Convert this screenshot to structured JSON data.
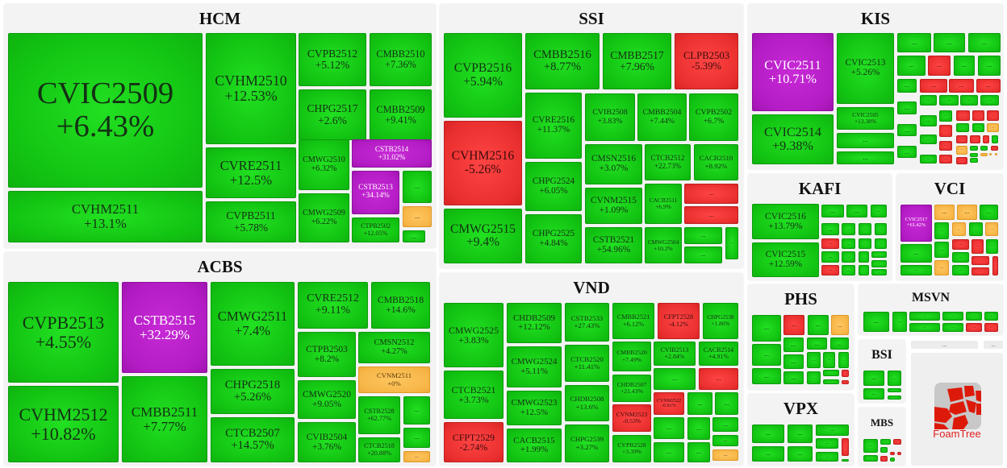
{
  "colors": {
    "up": "#12c412",
    "down": "#ea2f2f",
    "reference": "#f6b445",
    "ceiling": "#b31cc4"
  },
  "groups": [
    {
      "name": "HCM",
      "tiles": [
        {
          "t": "CVIC2509",
          "v": "+6.43%",
          "s": "up"
        },
        {
          "t": "CVHM2511",
          "v": "+13.1%",
          "s": "up"
        },
        {
          "t": "CVHM2510",
          "v": "+12.53%",
          "s": "up"
        },
        {
          "t": "CVRE2511",
          "v": "+12.5%",
          "s": "up"
        },
        {
          "t": "CVPB2511",
          "v": "+5.78%",
          "s": "up"
        },
        {
          "t": "CVPB2512",
          "v": "+5.12%",
          "s": "up"
        },
        {
          "t": "CMBB2510",
          "v": "+7.36%",
          "s": "up"
        },
        {
          "t": "CHPG2517",
          "v": "+2.6%",
          "s": "up"
        },
        {
          "t": "CMBB2509",
          "v": "+9.41%",
          "s": "up"
        },
        {
          "t": "CMWG2510",
          "v": "+6.32%",
          "s": "up"
        },
        {
          "t": "CSTB2514",
          "v": "+31.02%",
          "s": "ceil"
        },
        {
          "t": "CMWG2509",
          "v": "+6.22%",
          "s": "up"
        },
        {
          "t": "CSTB2513",
          "v": "+34.14%",
          "s": "ceil"
        },
        {
          "t": "...",
          "s": "up"
        },
        {
          "t": "...",
          "s": "ref"
        },
        {
          "t": "CTPB2502",
          "v": "+12.05%",
          "s": "up"
        },
        {
          "t": "...",
          "s": "up"
        }
      ]
    },
    {
      "name": "ACBS",
      "tiles": [
        {
          "t": "CVPB2513",
          "v": "+4.55%",
          "s": "up"
        },
        {
          "t": "CVHM2512",
          "v": "+10.82%",
          "s": "up"
        },
        {
          "t": "CSTB2515",
          "v": "+32.29%",
          "s": "ceil"
        },
        {
          "t": "CMBB2511",
          "v": "+7.77%",
          "s": "up"
        },
        {
          "t": "CMWG2511",
          "v": "+7.4%",
          "s": "up"
        },
        {
          "t": "CHPG2518",
          "v": "+5.26%",
          "s": "up"
        },
        {
          "t": "CTCB2507",
          "v": "+14.57%",
          "s": "up"
        },
        {
          "t": "CVRE2512",
          "v": "+9.11%",
          "s": "up"
        },
        {
          "t": "CMBB2518",
          "v": "+14.6%",
          "s": "up"
        },
        {
          "t": "CTPB2503",
          "v": "+8.2%",
          "s": "up"
        },
        {
          "t": "CMSN2512",
          "v": "+4.27%",
          "s": "up"
        },
        {
          "t": "CVNM2511",
          "v": "+0%",
          "s": "ref"
        },
        {
          "t": "CMWG2520",
          "v": "+9.05%",
          "s": "up"
        },
        {
          "t": "CSTB2528",
          "v": "+62.77%",
          "s": "up"
        },
        {
          "t": "CTCB2518",
          "v": "+20.88%",
          "s": "up"
        },
        {
          "t": "...",
          "s": "up"
        },
        {
          "t": "...",
          "s": "up"
        },
        {
          "t": "...",
          "s": "ref"
        },
        {
          "t": "CVIB2504",
          "v": "+3.76%",
          "s": "up"
        }
      ]
    },
    {
      "name": "SSI",
      "tiles": [
        {
          "t": "CVPB2516",
          "v": "+5.94%",
          "s": "up"
        },
        {
          "t": "CVHM2516",
          "v": "-5.26%",
          "s": "down"
        },
        {
          "t": "CMWG2515",
          "v": "+9.4%",
          "s": "up"
        },
        {
          "t": "CMBB2516",
          "v": "+8.77%",
          "s": "up"
        },
        {
          "t": "CMBB2517",
          "v": "+7.96%",
          "s": "up"
        },
        {
          "t": "CLPB2503",
          "v": "-5.39%",
          "s": "down"
        },
        {
          "t": "CVRE2516",
          "v": "+11.37%",
          "s": "up"
        },
        {
          "t": "CHPG2524",
          "v": "+6.05%",
          "s": "up"
        },
        {
          "t": "CHPG2525",
          "v": "+4.84%",
          "s": "up"
        },
        {
          "t": "CVIB2508",
          "v": "+3.83%",
          "s": "up"
        },
        {
          "t": "CMBB2504",
          "v": "+7.44%",
          "s": "up"
        },
        {
          "t": "CVPB2502",
          "v": "+6.7%",
          "s": "up"
        },
        {
          "t": "CMSN2516",
          "v": "+3.07%",
          "s": "up"
        },
        {
          "t": "CTCB2512",
          "v": "+22.73%",
          "s": "up"
        },
        {
          "t": "CACB2510",
          "v": "+8.92%",
          "s": "up"
        },
        {
          "t": "CVNM2515",
          "v": "+1.09%",
          "s": "up"
        },
        {
          "t": "CACB2511",
          "v": "+6.9%",
          "s": "up"
        },
        {
          "t": "...",
          "s": "down"
        },
        {
          "t": "...",
          "s": "down"
        },
        {
          "t": "CSTB2521",
          "v": "+54.96%",
          "s": "up"
        },
        {
          "t": "CMWG2504",
          "v": "+10.2%",
          "s": "up"
        },
        {
          "t": "...",
          "s": "up"
        },
        {
          "t": "...",
          "s": "up"
        },
        {
          "t": "...",
          "s": "up"
        }
      ]
    },
    {
      "name": "VND",
      "tiles": [
        {
          "t": "CMWG2525",
          "v": "+3.83%",
          "s": "up"
        },
        {
          "t": "CTCB2521",
          "v": "+3.73%",
          "s": "up"
        },
        {
          "t": "CFPT2529",
          "v": "-2.74%",
          "s": "down"
        },
        {
          "t": "CHDB2509",
          "v": "+12.12%",
          "s": "up"
        },
        {
          "t": "CMWG2524",
          "v": "+5.11%",
          "s": "up"
        },
        {
          "t": "CMWG2523",
          "v": "+12.5%",
          "s": "up"
        },
        {
          "t": "CACB2515",
          "v": "+1.99%",
          "s": "up"
        },
        {
          "t": "CSTB2533",
          "v": "+27.43%",
          "s": "up"
        },
        {
          "t": "CTCB2520",
          "v": "+11.41%",
          "s": "up"
        },
        {
          "t": "CHDB2508",
          "v": "+13.6%",
          "s": "up"
        },
        {
          "t": "CHPG2539",
          "v": "+3.27%",
          "s": "up"
        },
        {
          "t": "CMBB2521",
          "v": "+6.12%",
          "s": "up"
        },
        {
          "t": "CFPT2528",
          "v": "-4.12%",
          "s": "down"
        },
        {
          "t": "CHPG2538",
          "v": "+1.86%",
          "s": "up"
        },
        {
          "t": "CMBB2520",
          "v": "+7.49%",
          "s": "up"
        },
        {
          "t": "CVIB2513",
          "v": "+2.84%",
          "s": "up"
        },
        {
          "t": "CACB2514",
          "v": "+4.91%",
          "s": "up"
        },
        {
          "t": "...",
          "s": "up"
        },
        {
          "t": "...",
          "s": "down"
        },
        {
          "t": "CHDB2507",
          "v": "+21.43%",
          "s": "up"
        },
        {
          "t": "CVNM2522",
          "v": "-0.81%",
          "s": "down"
        },
        {
          "t": "...",
          "s": "up"
        },
        {
          "t": "...",
          "s": "up"
        },
        {
          "t": "CVNM2523",
          "v": "-0.53%",
          "s": "down"
        },
        {
          "t": "CVPB2528",
          "v": "+3.39%",
          "s": "up"
        },
        {
          "t": "...",
          "s": "up"
        },
        {
          "t": "...",
          "s": "up"
        },
        {
          "t": "...",
          "s": "up"
        },
        {
          "t": "...",
          "s": "up"
        },
        {
          "t": "...",
          "s": "up"
        },
        {
          "t": "...",
          "s": "up"
        },
        {
          "t": "...",
          "s": "ref"
        }
      ]
    },
    {
      "name": "KIS",
      "tiles": [
        {
          "t": "CVIC2511",
          "v": "+10.71%",
          "s": "ceil"
        },
        {
          "t": "CVIC2514",
          "v": "+9.38%",
          "s": "up"
        },
        {
          "t": "CVIC2513",
          "v": "+5.26%",
          "s": "up"
        },
        {
          "t": "CVIC2505",
          "v": "+13.38%",
          "s": "up"
        },
        {
          "t": "...",
          "s": "up"
        },
        {
          "t": "...",
          "s": "up"
        },
        {
          "t": "...",
          "s": "up"
        },
        {
          "t": "...",
          "s": "up"
        },
        {
          "t": "...",
          "s": "up"
        },
        {
          "t": "...",
          "s": "up"
        },
        {
          "t": "...",
          "s": "down"
        },
        {
          "t": "...",
          "s": "up"
        },
        {
          "t": "...",
          "s": "up"
        },
        {
          "t": "...",
          "s": "up"
        },
        {
          "t": "...",
          "s": "down"
        },
        {
          "t": "...",
          "s": "down"
        },
        {
          "t": "...",
          "s": "down"
        },
        {
          "t": "...",
          "s": "up"
        },
        {
          "t": "...",
          "s": "up"
        },
        {
          "t": "...",
          "s": "up"
        },
        {
          "t": "...",
          "s": "up"
        },
        {
          "t": "...",
          "s": "up"
        },
        {
          "t": "...",
          "s": "up"
        },
        {
          "t": "...",
          "s": "up"
        },
        {
          "t": "...",
          "s": "up"
        },
        {
          "t": "...",
          "s": "up"
        },
        {
          "t": "...",
          "s": "down"
        },
        {
          "t": "...",
          "s": "down"
        },
        {
          "t": "...",
          "s": "down"
        },
        {
          "t": "...",
          "s": "up"
        },
        {
          "t": "...",
          "s": "up"
        },
        {
          "t": "...",
          "s": "down"
        },
        {
          "t": "...",
          "s": "down"
        },
        {
          "t": "...",
          "s": "down"
        },
        {
          "t": "...",
          "s": "up"
        },
        {
          "t": "...",
          "s": "up"
        },
        {
          "t": "...",
          "s": "ref"
        },
        {
          "t": "...",
          "s": "down"
        },
        {
          "t": "...",
          "s": "down"
        },
        {
          "t": "...",
          "s": "down"
        },
        {
          "t": "...",
          "s": "up"
        },
        {
          "t": "...",
          "s": "ref"
        },
        {
          "t": "...",
          "s": "up"
        },
        {
          "t": "...",
          "s": "up"
        },
        {
          "t": "...",
          "s": "down"
        },
        {
          "t": "...",
          "s": "up"
        },
        {
          "t": "...",
          "s": "ref"
        },
        {
          "t": "...",
          "s": "ref"
        },
        {
          "t": "...",
          "s": "ref"
        },
        {
          "t": "...",
          "s": "down"
        },
        {
          "t": "...",
          "s": "up"
        }
      ]
    },
    {
      "name": "KAFI",
      "tiles": [
        {
          "t": "CVIC2516",
          "v": "+13.79%",
          "s": "up"
        },
        {
          "t": "CVIC2515",
          "v": "+12.59%",
          "s": "up"
        },
        {
          "t": "...",
          "s": "up"
        },
        {
          "t": "...",
          "s": "up"
        },
        {
          "t": "...",
          "s": "up"
        },
        {
          "t": "...",
          "s": "up"
        },
        {
          "t": "...",
          "s": "up"
        },
        {
          "t": "...",
          "s": "up"
        },
        {
          "t": "...",
          "s": "up"
        },
        {
          "t": "...",
          "s": "down"
        },
        {
          "t": "...",
          "s": "up"
        },
        {
          "t": "...",
          "s": "up"
        },
        {
          "t": "...",
          "s": "up"
        },
        {
          "t": "...",
          "s": "up"
        },
        {
          "t": "...",
          "s": "up"
        },
        {
          "t": "...",
          "s": "up"
        },
        {
          "t": "...",
          "s": "up"
        },
        {
          "t": "...",
          "s": "up"
        },
        {
          "t": "...",
          "s": "down"
        },
        {
          "t": "...",
          "s": "up"
        },
        {
          "t": "...",
          "s": "up"
        },
        {
          "t": "...",
          "s": "up"
        }
      ]
    },
    {
      "name": "VCI",
      "tiles": [
        {
          "t": "CVIC2517",
          "v": "+61.42%",
          "s": "ceil"
        },
        {
          "t": "...",
          "s": "up"
        },
        {
          "t": "...",
          "s": "up"
        },
        {
          "t": "...",
          "s": "ref"
        },
        {
          "t": "...",
          "s": "ref"
        },
        {
          "t": "...",
          "s": "up"
        },
        {
          "t": "...",
          "s": "up"
        },
        {
          "t": "...",
          "s": "ref"
        },
        {
          "t": "...",
          "s": "up"
        },
        {
          "t": "...",
          "s": "ref"
        },
        {
          "t": "...",
          "s": "up"
        },
        {
          "t": "...",
          "s": "down"
        },
        {
          "t": "...",
          "s": "down"
        },
        {
          "t": "...",
          "s": "up"
        },
        {
          "t": "...",
          "s": "ref"
        },
        {
          "t": "...",
          "s": "up"
        },
        {
          "t": "...",
          "s": "down"
        },
        {
          "t": "...",
          "s": "down"
        },
        {
          "t": "...",
          "s": "up"
        },
        {
          "t": "...",
          "s": "down"
        }
      ]
    },
    {
      "name": "PHS",
      "tiles": [
        {
          "t": "...",
          "s": "up"
        },
        {
          "t": "...",
          "s": "down"
        },
        {
          "t": "...",
          "s": "up"
        },
        {
          "t": "...",
          "s": "ref"
        },
        {
          "t": "...",
          "s": "up"
        },
        {
          "t": "...",
          "s": "up"
        },
        {
          "t": "...",
          "s": "up"
        },
        {
          "t": "...",
          "s": "up"
        },
        {
          "t": "...",
          "s": "up"
        },
        {
          "t": "...",
          "s": "up"
        },
        {
          "t": "...",
          "s": "up"
        },
        {
          "t": "...",
          "s": "up"
        },
        {
          "t": "...",
          "s": "up"
        },
        {
          "t": "...",
          "s": "up"
        },
        {
          "t": "...",
          "s": "up"
        },
        {
          "t": "...",
          "s": "up"
        },
        {
          "t": "...",
          "s": "up"
        },
        {
          "t": "...",
          "s": "down"
        },
        {
          "t": "...",
          "s": "down"
        }
      ]
    },
    {
      "name": "VPX",
      "tiles": [
        {
          "t": "...",
          "s": "up"
        },
        {
          "t": "...",
          "s": "up"
        },
        {
          "t": "...",
          "s": "up"
        },
        {
          "t": "...",
          "s": "up"
        },
        {
          "t": "...",
          "s": "up"
        },
        {
          "t": "...",
          "s": "up"
        },
        {
          "t": "...",
          "s": "up"
        },
        {
          "t": "...",
          "s": "down"
        },
        {
          "t": "...",
          "s": "up"
        }
      ]
    },
    {
      "name": "MSVN",
      "tiles": [
        {
          "t": "...",
          "s": "up"
        },
        {
          "t": "...",
          "s": "up"
        },
        {
          "t": "...",
          "s": "up"
        },
        {
          "t": "...",
          "s": "up"
        },
        {
          "t": "...",
          "s": "up"
        },
        {
          "t": "...",
          "s": "up"
        },
        {
          "t": "...",
          "s": "up"
        },
        {
          "t": "...",
          "s": "down"
        },
        {
          "t": "...",
          "s": "up"
        },
        {
          "t": "...",
          "s": "down"
        }
      ]
    },
    {
      "name": "BSI",
      "tiles": [
        {
          "t": "...",
          "s": "up"
        },
        {
          "t": "...",
          "s": "up"
        },
        {
          "t": "...",
          "s": "up"
        },
        {
          "t": "...",
          "s": "up"
        },
        {
          "t": "...",
          "s": "up"
        }
      ]
    },
    {
      "name": "MBS",
      "tiles": [
        {
          "t": "...",
          "s": "up"
        },
        {
          "t": "...",
          "s": "up"
        },
        {
          "t": "...",
          "s": "down"
        },
        {
          "t": "...",
          "s": "up"
        },
        {
          "t": "...",
          "s": "down"
        },
        {
          "t": "...",
          "s": "down"
        },
        {
          "t": "...",
          "s": "up"
        },
        {
          "t": "...",
          "s": "down"
        },
        {
          "t": "...",
          "s": "up"
        }
      ]
    }
  ],
  "foamtree": {
    "bar1": "...",
    "bar2": "...",
    "logo_text": "FoamTree"
  }
}
